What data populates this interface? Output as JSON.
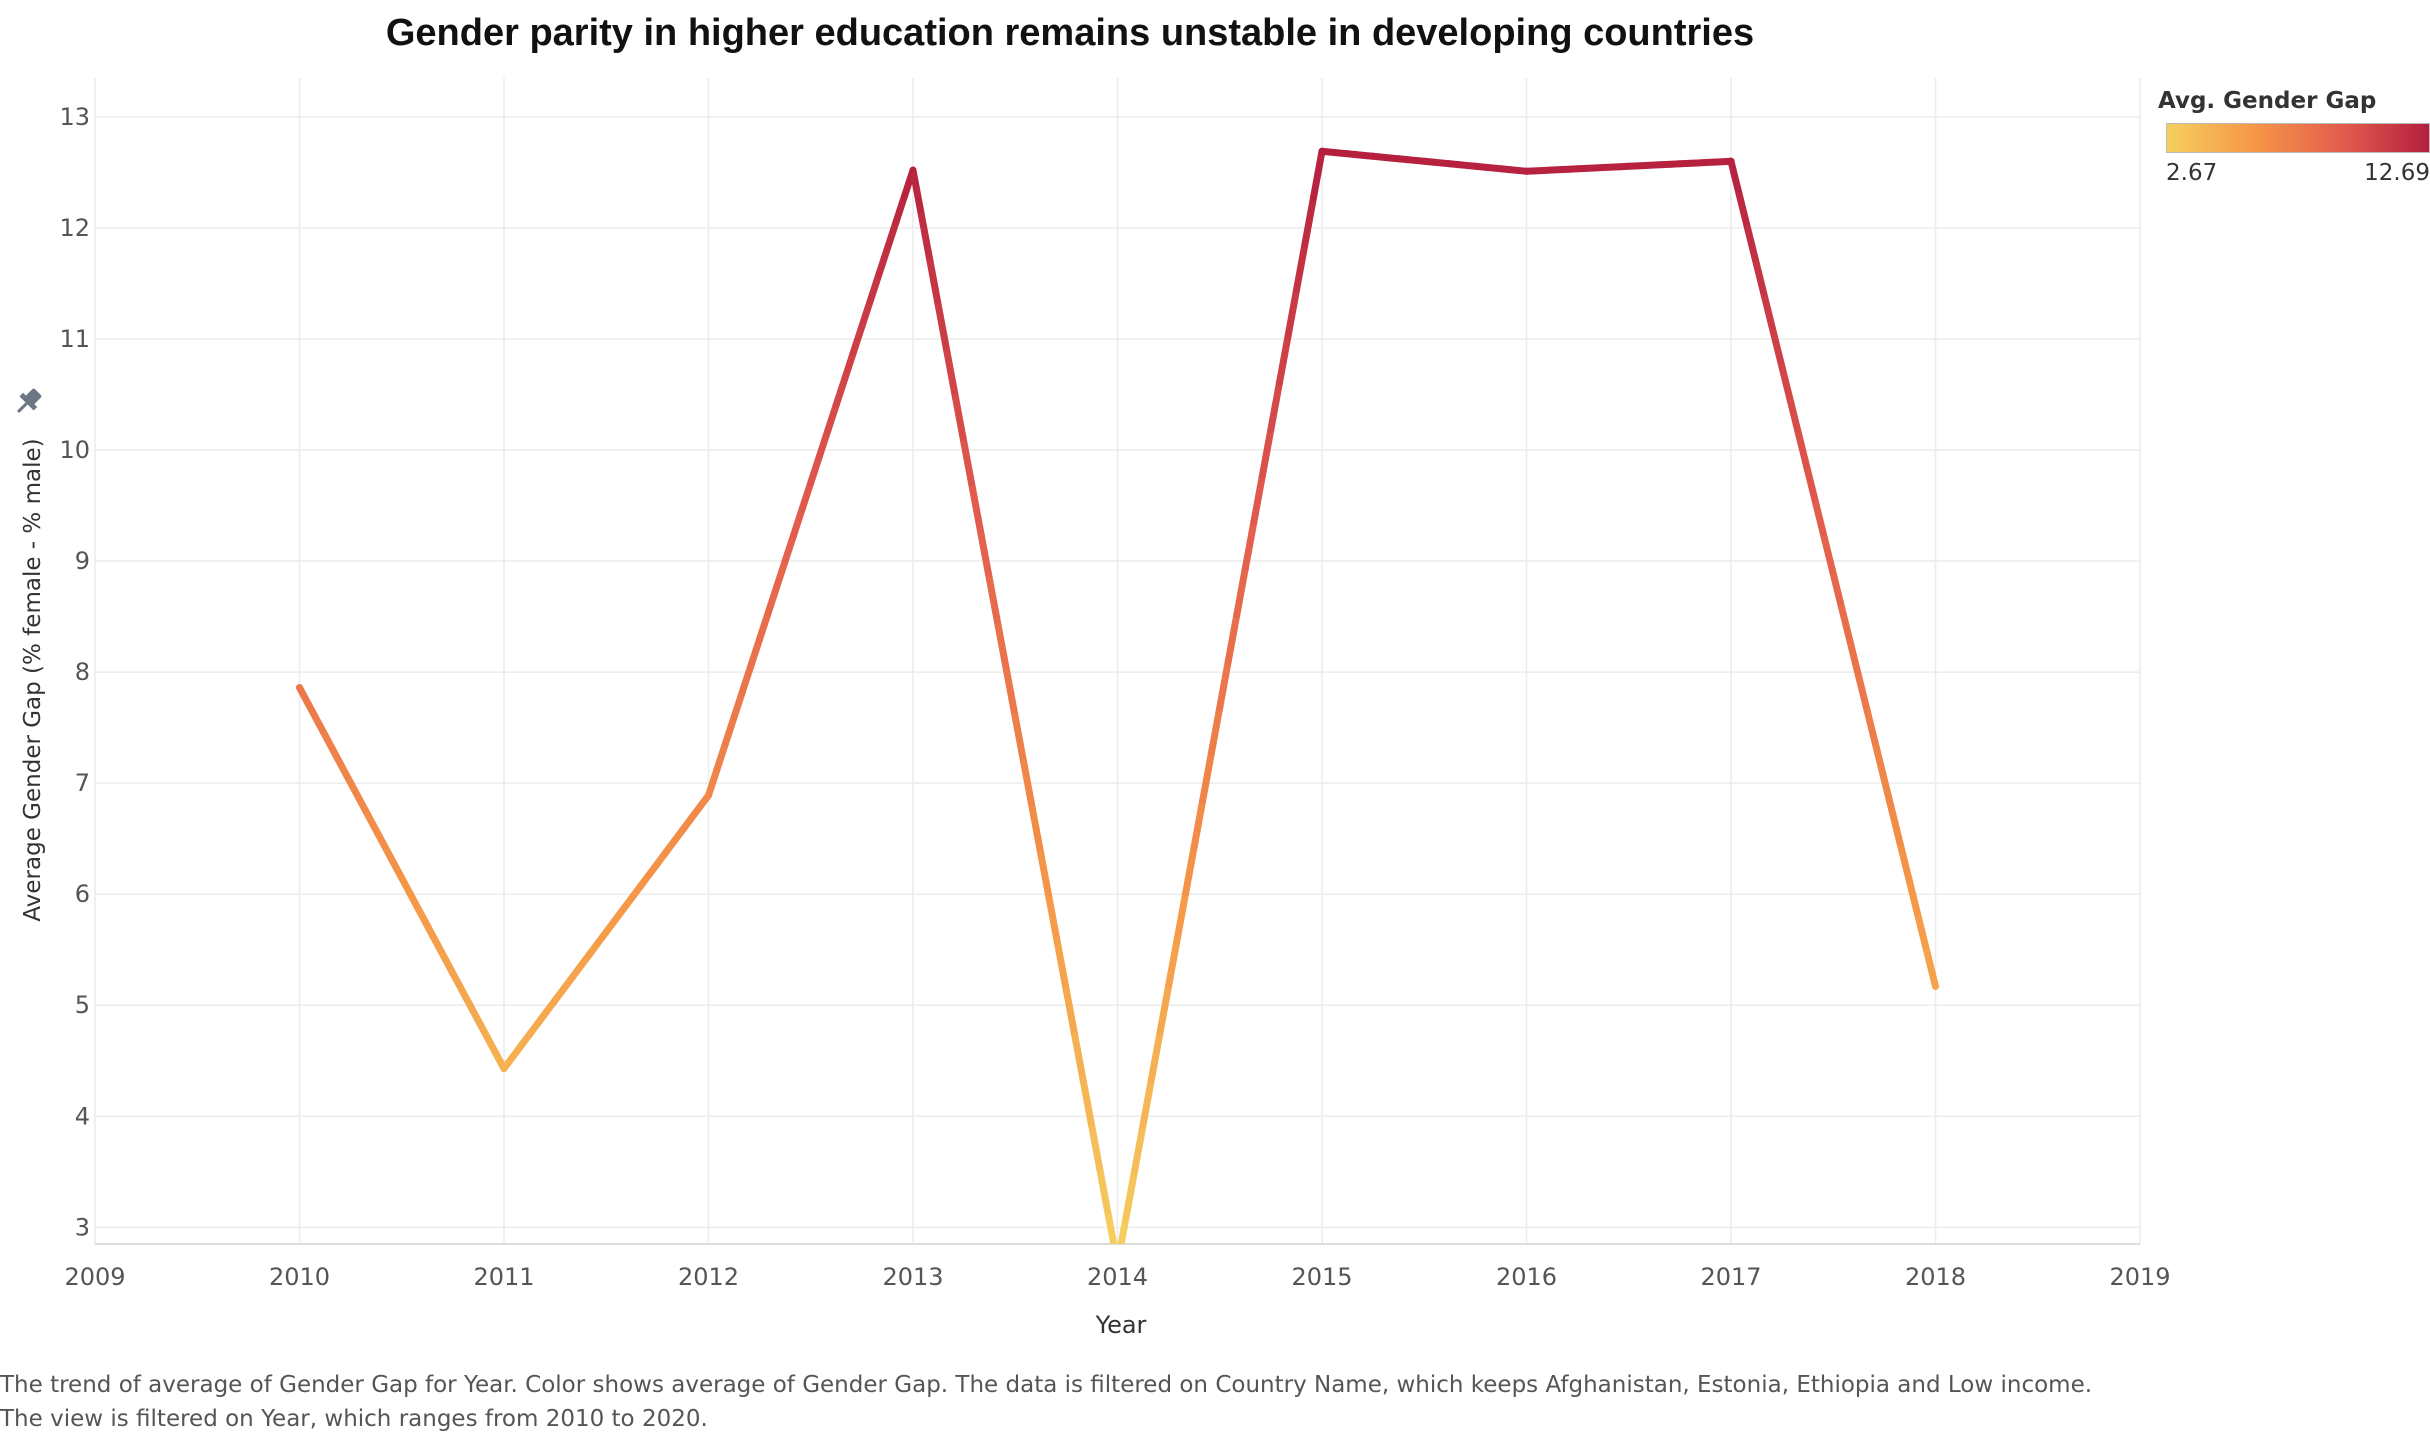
{
  "chart_data": {
    "type": "line",
    "title": "Gender parity in higher education remains unstable in developing countries",
    "xlabel": "Year",
    "ylabel": "Average Gender Gap (% female - % male)",
    "x": [
      2010,
      2011,
      2012,
      2013,
      2014,
      2015,
      2016,
      2017,
      2018
    ],
    "y": [
      7.86,
      4.43,
      6.89,
      12.52,
      2.67,
      12.69,
      12.51,
      12.6,
      5.17
    ],
    "xlim": [
      2009,
      2019
    ],
    "ylim": [
      2.85,
      13.35
    ],
    "x_ticks": [
      "2009",
      "2010",
      "2011",
      "2012",
      "2013",
      "2014",
      "2015",
      "2016",
      "2017",
      "2018",
      "2019"
    ],
    "y_ticks": [
      "3",
      "4",
      "5",
      "6",
      "7",
      "8",
      "9",
      "10",
      "11",
      "12",
      "13"
    ],
    "grid": true,
    "color_scale": {
      "title": "Avg. Gender Gap",
      "min_label": "2.67",
      "max_label": "12.69",
      "min": 2.67,
      "max": 12.69,
      "colors": [
        "#f5cf5f",
        "#f59747",
        "#e35d4d",
        "#b41f3e"
      ]
    },
    "legend_position": "top-right"
  },
  "caption": "The trend of average of Gender Gap for Year.  Color shows average of Gender Gap. The data is filtered on Country Name, which keeps Afghanistan, Estonia, Ethiopia and Low income. The view is filtered on Year, which ranges from 2010 to 2020.",
  "pin_icon": "pin-icon"
}
